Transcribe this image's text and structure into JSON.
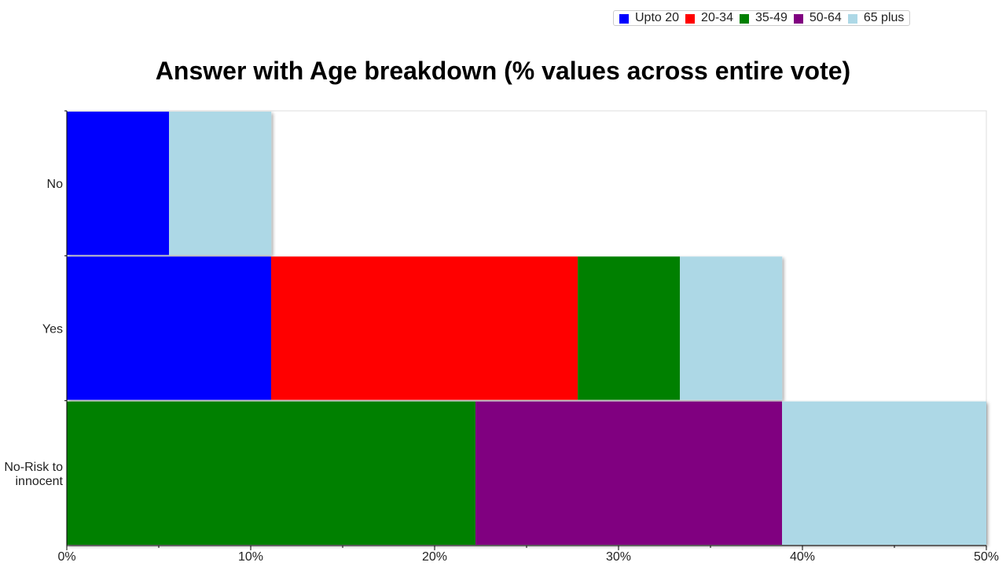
{
  "chart_data": {
    "type": "bar",
    "orientation": "horizontal",
    "stacked": true,
    "title": "Answer with Age breakdown (% values across entire vote)",
    "categories": [
      "No",
      "Yes",
      "No-Risk to innocent"
    ],
    "category_lines": [
      [
        "No"
      ],
      [
        "Yes"
      ],
      [
        "No-Risk to",
        "innocent"
      ]
    ],
    "series": [
      {
        "name": "Upto 20",
        "color": "#0000ff",
        "values": [
          5.56,
          11.11,
          0
        ]
      },
      {
        "name": "20-34",
        "color": "#ff0000",
        "values": [
          0,
          16.67,
          0
        ]
      },
      {
        "name": "35-49",
        "color": "#008000",
        "values": [
          0,
          5.56,
          22.22
        ]
      },
      {
        "name": "50-64",
        "color": "#800080",
        "values": [
          0,
          0,
          16.67
        ]
      },
      {
        "name": "65 plus",
        "color": "#add8e6",
        "values": [
          5.56,
          5.56,
          11.11
        ]
      }
    ],
    "xlim": [
      0,
      50
    ],
    "x_ticks": [
      0,
      10,
      20,
      30,
      40,
      50
    ],
    "x_tick_labels": [
      "0%",
      "10%",
      "20%",
      "30%",
      "40%",
      "50%"
    ],
    "xlabel": "",
    "ylabel": "",
    "legend_position": "top-right",
    "grid": false
  }
}
